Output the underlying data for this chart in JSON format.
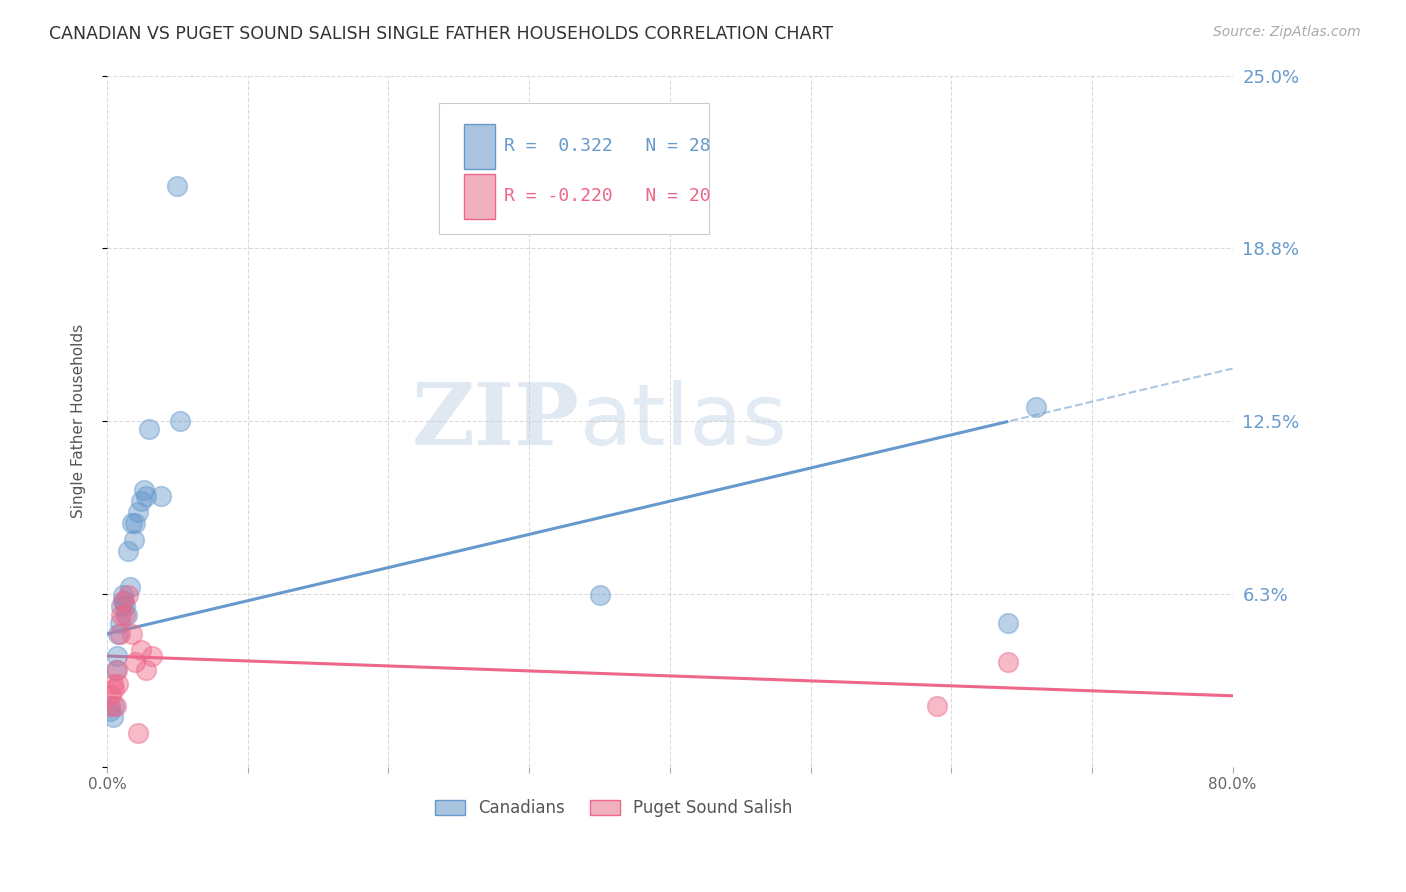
{
  "title": "CANADIAN VS PUGET SOUND SALISH SINGLE FATHER HOUSEHOLDS CORRELATION CHART",
  "source": "Source: ZipAtlas.com",
  "ylabel": "Single Father Households",
  "yticks": [
    0.0,
    0.0625,
    0.125,
    0.1875,
    0.25
  ],
  "ytick_labels": [
    "",
    "6.3%",
    "12.5%",
    "18.8%",
    "25.0%"
  ],
  "xlim": [
    0.0,
    0.8
  ],
  "ylim": [
    0.0,
    0.25
  ],
  "bg_color": "#ffffff",
  "grid_color": "#cccccc",
  "canadians_color": "#6699cc",
  "puget_color": "#ee6688",
  "canadians_label": "Canadians",
  "puget_label": "Puget Sound Salish",
  "legend_r_canadian": "R =  0.322",
  "legend_n_canadian": "N = 28",
  "legend_r_puget": "R = -0.220",
  "legend_n_puget": "N = 20",
  "canadians_x": [
    0.002,
    0.004,
    0.005,
    0.006,
    0.007,
    0.008,
    0.009,
    0.01,
    0.011,
    0.012,
    0.013,
    0.014,
    0.015,
    0.016,
    0.018,
    0.019,
    0.02,
    0.022,
    0.024,
    0.026,
    0.028,
    0.03,
    0.038,
    0.05,
    0.052,
    0.35,
    0.64,
    0.66
  ],
  "canadians_y": [
    0.02,
    0.018,
    0.022,
    0.035,
    0.04,
    0.048,
    0.052,
    0.058,
    0.062,
    0.06,
    0.058,
    0.055,
    0.078,
    0.065,
    0.088,
    0.082,
    0.088,
    0.092,
    0.096,
    0.1,
    0.098,
    0.122,
    0.098,
    0.21,
    0.125,
    0.062,
    0.052,
    0.13
  ],
  "puget_x": [
    0.002,
    0.003,
    0.004,
    0.005,
    0.006,
    0.007,
    0.008,
    0.009,
    0.01,
    0.011,
    0.013,
    0.015,
    0.018,
    0.02,
    0.022,
    0.024,
    0.028,
    0.032,
    0.59,
    0.64
  ],
  "puget_y": [
    0.022,
    0.026,
    0.03,
    0.028,
    0.022,
    0.035,
    0.03,
    0.048,
    0.055,
    0.06,
    0.055,
    0.062,
    0.048,
    0.038,
    0.012,
    0.042,
    0.035,
    0.04,
    0.022,
    0.038
  ],
  "watermark_zip": "ZIP",
  "watermark_atlas": "atlas",
  "title_color": "#333333",
  "ytick_color": "#6699cc",
  "trend_blue_start": 0.0,
  "trend_blue_solid_end": 0.64,
  "trend_blue_end": 0.8,
  "trend_pink_start": 0.0,
  "trend_pink_end": 0.8
}
